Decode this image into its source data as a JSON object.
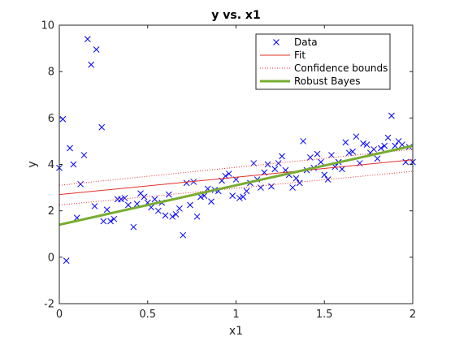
{
  "chart_data": {
    "type": "scatter",
    "title": "y vs. x1",
    "xlabel": "x1",
    "ylabel": "y",
    "xlim": [
      0,
      2
    ],
    "ylim": [
      -2,
      10
    ],
    "xticks": [
      0,
      0.5,
      1,
      1.5,
      2
    ],
    "xtick_labels": [
      "0",
      "0.5",
      "1",
      "1.5",
      "2"
    ],
    "yticks": [
      -2,
      0,
      2,
      4,
      6,
      8,
      10
    ],
    "ytick_labels": [
      "-2",
      "0",
      "2",
      "4",
      "6",
      "8",
      "10"
    ],
    "grid": false,
    "legend_position": "top-right",
    "series": [
      {
        "name": "Data",
        "kind": "scatter",
        "marker": "x",
        "color": "#0000ff",
        "points": [
          [
            0.0,
            3.85
          ],
          [
            0.02,
            5.95
          ],
          [
            0.04,
            -0.15
          ],
          [
            0.06,
            4.7
          ],
          [
            0.08,
            4.0
          ],
          [
            0.1,
            1.7
          ],
          [
            0.12,
            3.15
          ],
          [
            0.14,
            4.4
          ],
          [
            0.16,
            9.4
          ],
          [
            0.18,
            8.3
          ],
          [
            0.21,
            8.95
          ],
          [
            0.2,
            2.2
          ],
          [
            0.24,
            5.6
          ],
          [
            0.25,
            1.55
          ],
          [
            0.27,
            2.05
          ],
          [
            0.29,
            1.55
          ],
          [
            0.31,
            1.65
          ],
          [
            0.33,
            2.5
          ],
          [
            0.35,
            2.5
          ],
          [
            0.37,
            2.55
          ],
          [
            0.39,
            2.25
          ],
          [
            0.42,
            1.3
          ],
          [
            0.44,
            2.3
          ],
          [
            0.46,
            2.75
          ],
          [
            0.48,
            2.6
          ],
          [
            0.5,
            2.35
          ],
          [
            0.52,
            2.15
          ],
          [
            0.54,
            2.5
          ],
          [
            0.56,
            2.0
          ],
          [
            0.58,
            2.35
          ],
          [
            0.6,
            1.8
          ],
          [
            0.62,
            2.7
          ],
          [
            0.64,
            1.75
          ],
          [
            0.66,
            1.85
          ],
          [
            0.68,
            2.1
          ],
          [
            0.7,
            0.95
          ],
          [
            0.72,
            3.2
          ],
          [
            0.74,
            2.25
          ],
          [
            0.76,
            3.25
          ],
          [
            0.78,
            1.75
          ],
          [
            0.8,
            2.6
          ],
          [
            0.82,
            2.65
          ],
          [
            0.84,
            2.95
          ],
          [
            0.86,
            2.4
          ],
          [
            0.88,
            2.9
          ],
          [
            0.9,
            2.85
          ],
          [
            0.92,
            3.3
          ],
          [
            0.94,
            3.5
          ],
          [
            0.96,
            3.6
          ],
          [
            0.98,
            2.65
          ],
          [
            1.0,
            3.35
          ],
          [
            1.02,
            2.55
          ],
          [
            1.04,
            2.6
          ],
          [
            1.06,
            2.85
          ],
          [
            1.08,
            3.2
          ],
          [
            1.1,
            4.05
          ],
          [
            1.12,
            3.35
          ],
          [
            1.14,
            3.0
          ],
          [
            1.16,
            3.65
          ],
          [
            1.18,
            4.0
          ],
          [
            1.2,
            3.05
          ],
          [
            1.22,
            3.8
          ],
          [
            1.24,
            4.05
          ],
          [
            1.26,
            4.35
          ],
          [
            1.28,
            3.75
          ],
          [
            1.3,
            3.55
          ],
          [
            1.32,
            3.0
          ],
          [
            1.34,
            3.4
          ],
          [
            1.36,
            3.2
          ],
          [
            1.38,
            5.0
          ],
          [
            1.4,
            3.75
          ],
          [
            1.42,
            4.3
          ],
          [
            1.44,
            3.85
          ],
          [
            1.46,
            4.45
          ],
          [
            1.48,
            4.1
          ],
          [
            1.5,
            3.55
          ],
          [
            1.52,
            3.35
          ],
          [
            1.54,
            4.4
          ],
          [
            1.56,
            3.9
          ],
          [
            1.58,
            4.1
          ],
          [
            1.6,
            3.8
          ],
          [
            1.62,
            4.95
          ],
          [
            1.64,
            4.5
          ],
          [
            1.66,
            4.55
          ],
          [
            1.68,
            5.2
          ],
          [
            1.7,
            4.05
          ],
          [
            1.72,
            4.9
          ],
          [
            1.74,
            4.85
          ],
          [
            1.76,
            4.5
          ],
          [
            1.78,
            4.65
          ],
          [
            1.8,
            4.25
          ],
          [
            1.82,
            4.7
          ],
          [
            1.84,
            4.8
          ],
          [
            1.86,
            5.15
          ],
          [
            1.88,
            6.1
          ],
          [
            1.9,
            4.8
          ],
          [
            1.92,
            5.0
          ],
          [
            1.94,
            4.85
          ],
          [
            1.96,
            4.1
          ],
          [
            1.98,
            4.75
          ],
          [
            2.0,
            4.1
          ]
        ]
      },
      {
        "name": "Fit",
        "kind": "line",
        "style": "solid",
        "color": "#e0302a",
        "x": [
          0,
          2
        ],
        "y": [
          2.7,
          4.2
        ]
      },
      {
        "name": "Confidence bounds",
        "kind": "line",
        "style": "dotted",
        "color": "#e0302a",
        "x": [
          0,
          2
        ],
        "y": [
          3.1,
          4.65
        ]
      },
      {
        "name": "",
        "kind": "line",
        "style": "dotted",
        "color": "#e0302a",
        "x": [
          0,
          2
        ],
        "y": [
          2.25,
          3.7
        ]
      },
      {
        "name": "Robust Bayes",
        "kind": "line",
        "style": "solid",
        "color": "#77ac30",
        "x": [
          0,
          2
        ],
        "y": [
          1.4,
          4.8
        ]
      }
    ]
  }
}
